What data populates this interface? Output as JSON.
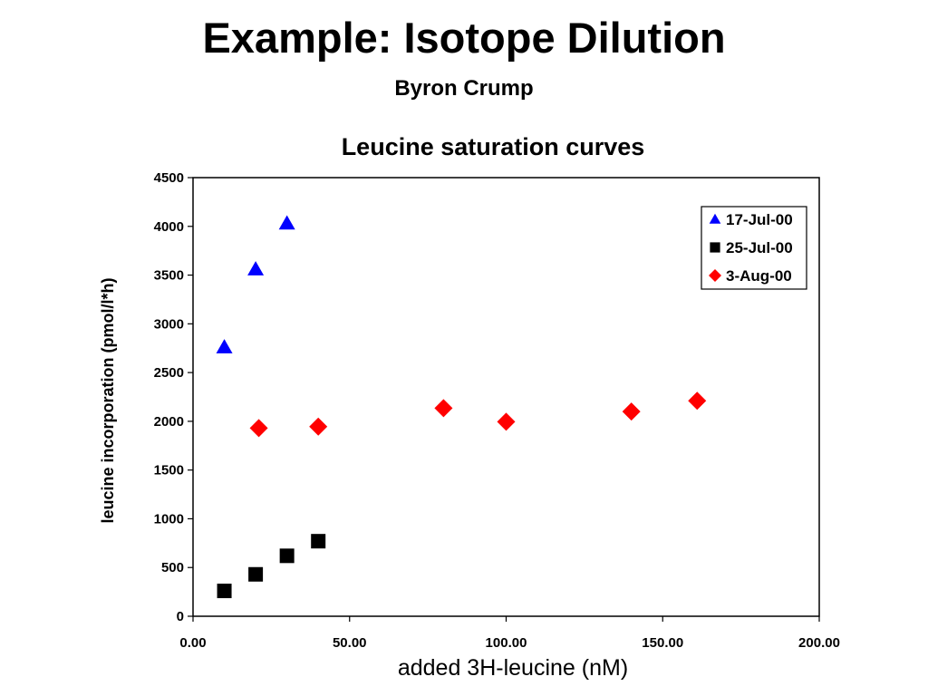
{
  "slide": {
    "title": "Example: Isotope Dilution",
    "author": "Byron Crump"
  },
  "chart_data": {
    "type": "scatter",
    "title": "Leucine saturation curves",
    "xlabel": "added 3H-leucine (nM)",
    "ylabel": "leucine incorporation (pmol/l*h)",
    "xlim": [
      0,
      200
    ],
    "ylim": [
      0,
      4500
    ],
    "x_ticks": [
      "0.00",
      "50.00",
      "100.00",
      "150.00",
      "200.00"
    ],
    "y_ticks": [
      "0",
      "500",
      "1000",
      "1500",
      "2000",
      "2500",
      "3000",
      "3500",
      "4000",
      "4500"
    ],
    "grid": false,
    "legend_position": "top-right",
    "series": [
      {
        "name": "17-Jul-00",
        "marker": "triangle",
        "color": "#0000ff",
        "points": [
          [
            10,
            2760
          ],
          [
            20,
            3560
          ],
          [
            30,
            4030
          ]
        ]
      },
      {
        "name": "25-Jul-00",
        "marker": "square",
        "color": "#000000",
        "points": [
          [
            10,
            260
          ],
          [
            20,
            430
          ],
          [
            30,
            620
          ],
          [
            40,
            770
          ]
        ]
      },
      {
        "name": "3-Aug-00",
        "marker": "diamond",
        "color": "#ff0000",
        "points": [
          [
            21,
            1930
          ],
          [
            40,
            1945
          ],
          [
            80,
            2135
          ],
          [
            100,
            1995
          ],
          [
            140,
            2100
          ],
          [
            161,
            2210
          ]
        ]
      }
    ]
  }
}
